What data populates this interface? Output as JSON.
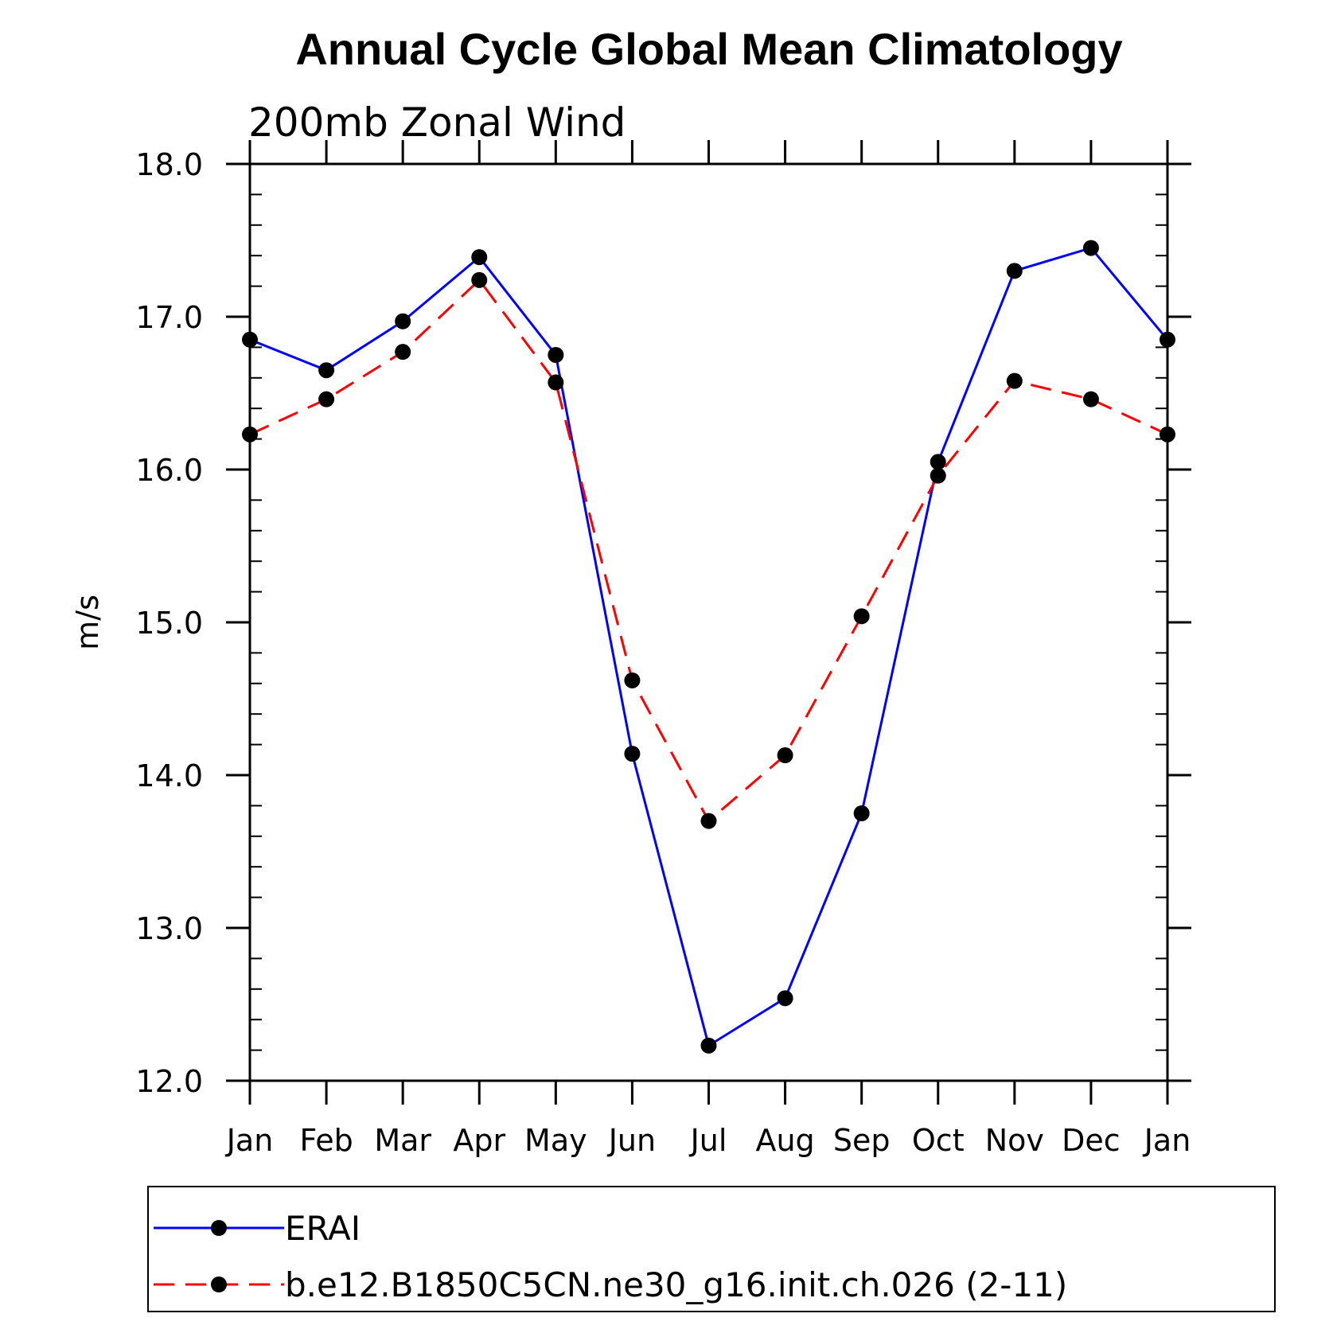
{
  "chart_data": {
    "type": "line",
    "title": "Annual Cycle Global Mean Climatology",
    "subtitle": "200mb Zonal Wind",
    "ylabel": "m/s",
    "xlabel": "",
    "ylim": [
      12.0,
      18.0
    ],
    "yticks": [
      "12.0",
      "13.0",
      "14.0",
      "15.0",
      "16.0",
      "17.0",
      "18.0"
    ],
    "categories": [
      "Jan",
      "Feb",
      "Mar",
      "Apr",
      "May",
      "Jun",
      "Jul",
      "Aug",
      "Sep",
      "Oct",
      "Nov",
      "Dec",
      "Jan"
    ],
    "series": [
      {
        "name": "ERAI",
        "color": "#0000ff",
        "style": "solid",
        "values": [
          16.85,
          16.65,
          16.97,
          17.39,
          16.75,
          14.14,
          12.23,
          12.54,
          13.75,
          16.05,
          17.3,
          17.45,
          16.85
        ]
      },
      {
        "name": "b.e12.B1850C5CN.ne30_g16.init.ch.026 (2-11)",
        "color": "#ff0000",
        "style": "dashed",
        "values": [
          16.23,
          16.46,
          16.77,
          17.24,
          16.57,
          14.62,
          13.7,
          14.13,
          15.04,
          15.96,
          16.58,
          16.46,
          16.23
        ]
      }
    ],
    "marker": "filled-circle",
    "grid": false,
    "legend_position": "bottom"
  }
}
